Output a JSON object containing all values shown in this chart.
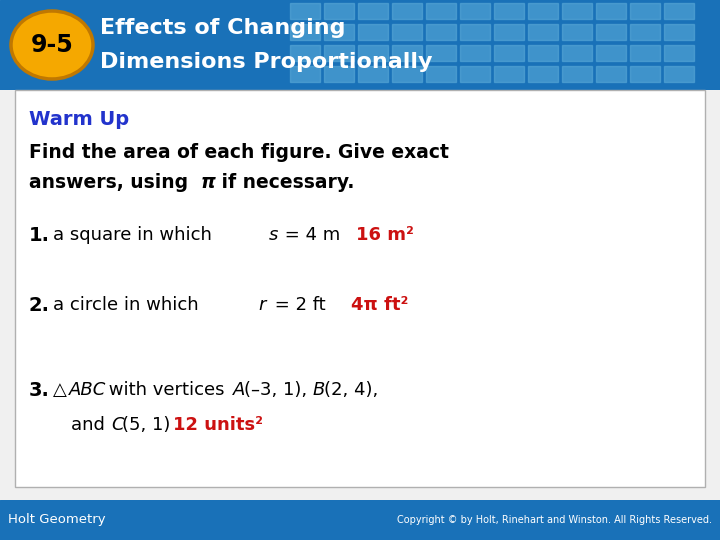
{
  "title_line1": "Effects of Changing",
  "title_line2": "Dimensions Proportionally",
  "lesson_num": "9-5",
  "header_bg_color": "#1971b8",
  "header_tile_color": "#5aaad8",
  "badge_color": "#f5a800",
  "badge_border_color": "#c07800",
  "title_text_color": "#ffffff",
  "warmup_title": "Warm Up",
  "warmup_title_color": "#2233cc",
  "warmup_intro1": "Find the area of each figure. Give exact",
  "warmup_intro2": "answers, using π if necessary.",
  "answer_color": "#cc1111",
  "body_bg": "#f0f0f0",
  "content_bg": "#ffffff",
  "footer_bg": "#1971b8",
  "footer_left": "Holt Geometry",
  "footer_right": "Copyright © by Holt, Rinehart and Winston. All Rights Reserved.",
  "footer_text_color": "#ffffff",
  "box_border_color": "#b0b0b0",
  "fig_width": 7.2,
  "fig_height": 5.4,
  "dpi": 100
}
